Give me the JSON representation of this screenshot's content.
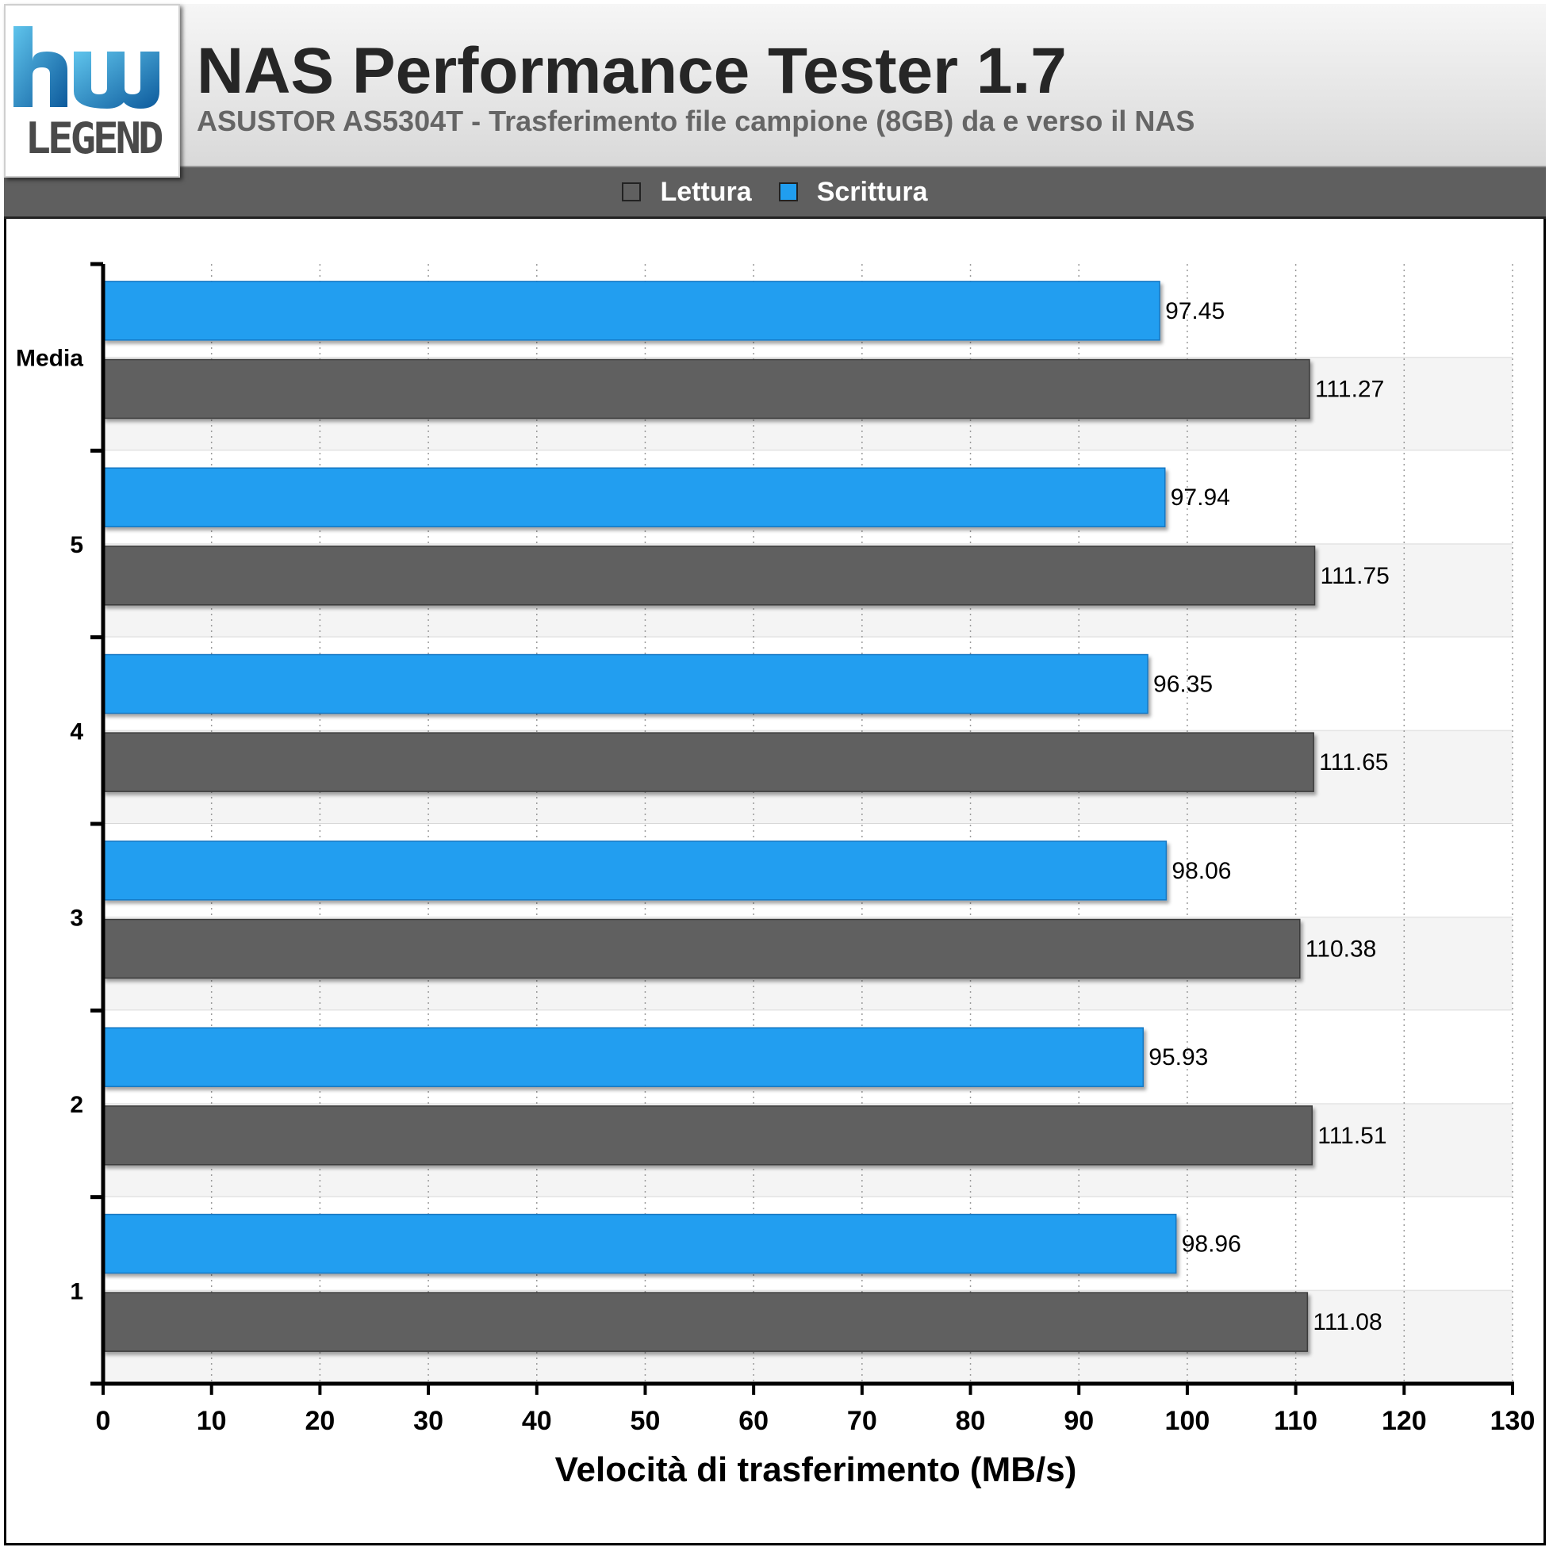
{
  "header": {
    "logo_text": "LEGEND",
    "title": "NAS Performance Tester 1.7",
    "subtitle": "ASUSTOR AS5304T - Trasferimento file campione (8GB) da e verso il NAS"
  },
  "colors": {
    "lettura": "#606060",
    "scrittura": "#209ef0",
    "accent_logo_dark": "#0d5a9c",
    "accent_logo_light": "#5fc4ec"
  },
  "chart_data": {
    "type": "bar",
    "orientation": "horizontal",
    "title": "NAS Performance Tester 1.7",
    "subtitle": "ASUSTOR AS5304T - Trasferimento file campione (8GB) da e verso il NAS",
    "xlabel": "Velocità di trasferimento (MB/s)",
    "ylabel": "",
    "xlim": [
      0,
      130
    ],
    "xticks": [
      0,
      10,
      20,
      30,
      40,
      50,
      60,
      70,
      80,
      90,
      100,
      110,
      120,
      130
    ],
    "grid": "vertical dotted",
    "legend_placement": "top-center",
    "categories": [
      "Media",
      "5",
      "4",
      "3",
      "2",
      "1"
    ],
    "series": [
      {
        "name": "Scrittura",
        "color": "#209ef0",
        "values": [
          97.45,
          97.94,
          96.35,
          98.06,
          95.93,
          98.96
        ]
      },
      {
        "name": "Lettura",
        "color": "#606060",
        "values": [
          111.27,
          111.75,
          111.65,
          110.38,
          111.51,
          111.08
        ]
      }
    ],
    "legend": [
      "Lettura",
      "Scrittura"
    ]
  }
}
